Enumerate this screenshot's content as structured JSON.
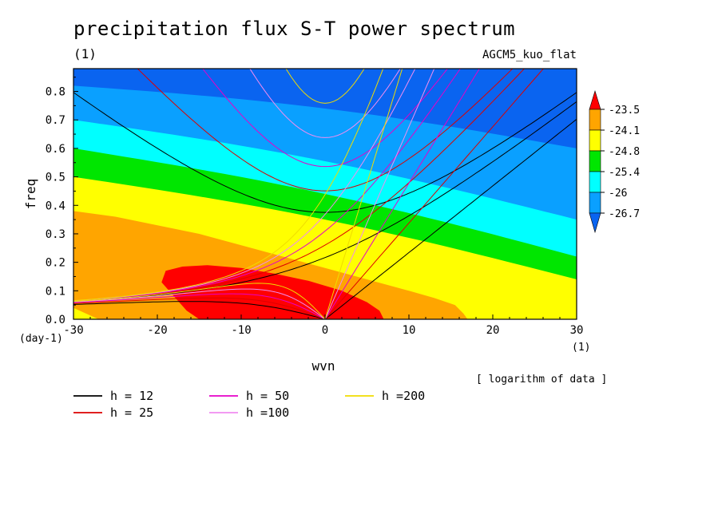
{
  "chart_data": {
    "type": "heatmap",
    "title": "precipitation flux S-T power spectrum",
    "units_label": "(1)",
    "model_label": "AGCM5_kuo_flat",
    "xlabel": "wvn",
    "ylabel": "freq",
    "x_unit_label": "(1)",
    "y_unit_label": "(day-1)",
    "xlim": [
      -30,
      30
    ],
    "ylim": [
      0,
      0.88
    ],
    "x_ticks": [
      -30,
      -20,
      -10,
      0,
      10,
      20,
      30
    ],
    "x_tick_labels": [
      "-30",
      "-20",
      "-10",
      "0",
      "10",
      "20",
      "30"
    ],
    "y_ticks": [
      0,
      0.1,
      0.2,
      0.3,
      0.4,
      0.5,
      0.6,
      0.7,
      0.8
    ],
    "y_tick_labels": [
      "0.0",
      "0.1",
      "0.2",
      "0.3",
      "0.4",
      "0.5",
      "0.6",
      "0.7",
      "0.8"
    ],
    "note": "[ logarithm of data ]",
    "colorbar": {
      "levels": [
        "-23.5",
        "-24.1",
        "-24.8",
        "-25.4",
        "-26",
        "-26.7"
      ],
      "level_values": [
        -23.5,
        -24.1,
        -24.8,
        -25.4,
        -26.0,
        -26.7
      ],
      "colors": [
        "#ff0000",
        "#ffa500",
        "#ffff00",
        "#00e600",
        "#00ffff",
        "#0aa0ff",
        "#0a64f0"
      ]
    },
    "contour_bands_at_x_minus30": [
      {
        "range": [
          0.0,
          0.04
        ],
        "color": "#ffff00"
      },
      {
        "range": [
          0.04,
          0.38
        ],
        "color": "#ffa500"
      },
      {
        "range": [
          0.38,
          0.5
        ],
        "color": "#ffff00"
      },
      {
        "range": [
          0.5,
          0.6
        ],
        "color": "#00e600"
      },
      {
        "range": [
          0.6,
          0.7
        ],
        "color": "#00ffff"
      },
      {
        "range": [
          0.7,
          0.82
        ],
        "color": "#0aa0ff"
      },
      {
        "range": [
          0.82,
          0.88
        ],
        "color": "#0a64f0"
      }
    ],
    "series": [
      {
        "name": "h = 12",
        "equivalent_depth": 12,
        "color": "#000000"
      },
      {
        "name": "h = 25",
        "equivalent_depth": 25,
        "color": "#dc0000"
      },
      {
        "name": "h = 50",
        "equivalent_depth": 50,
        "color": "#e600c8"
      },
      {
        "name": "h =100",
        "equivalent_depth": 100,
        "color": "#f08cf0"
      },
      {
        "name": "h =200",
        "equivalent_depth": 200,
        "color": "#f0dc00"
      }
    ],
    "grid": false,
    "legend_position": "bottom-left"
  }
}
